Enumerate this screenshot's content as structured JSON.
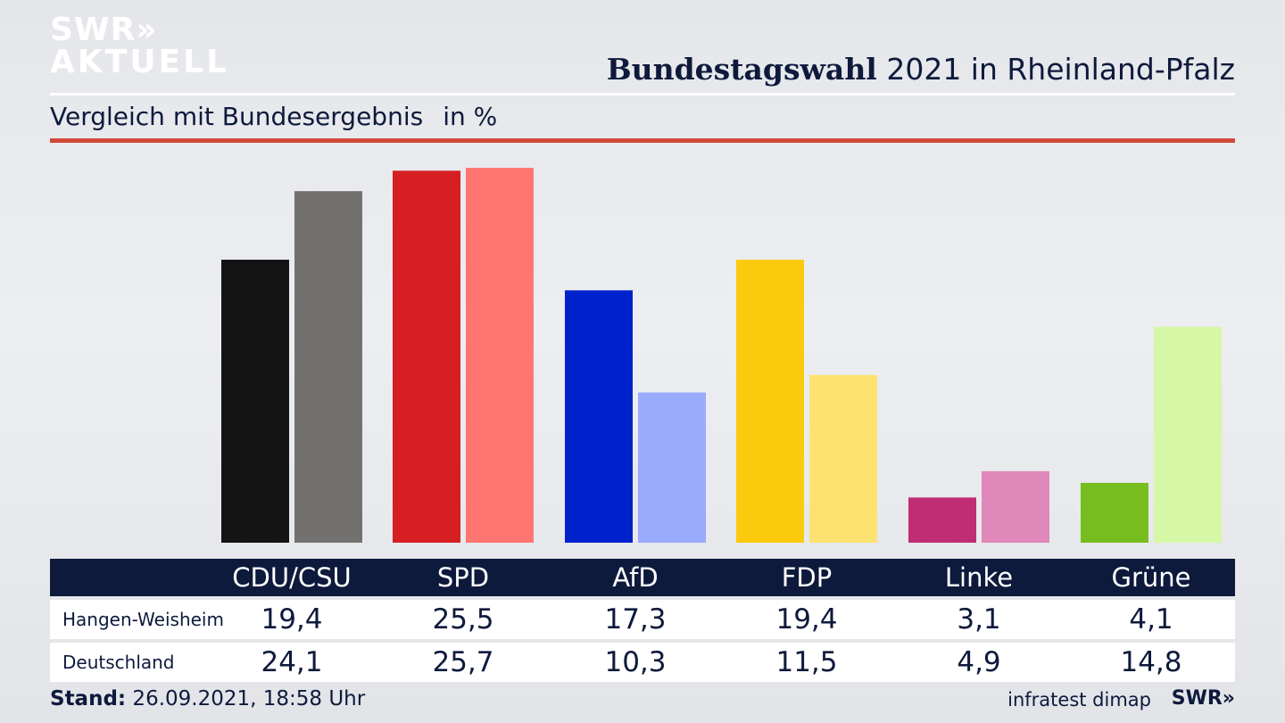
{
  "logo": {
    "line1": "SWR»",
    "line2": "AKTUELL"
  },
  "header": {
    "title_bold": "Bundestagswahl",
    "title_rest": " 2021 in Rheinland-Pfalz",
    "subtitle": "Vergleich mit Bundesergebnis",
    "unit": "in %"
  },
  "colors": {
    "navy": "#0e1a3c",
    "rule_red": "#d04a3a"
  },
  "chart_data": {
    "type": "bar",
    "categories": [
      "CDU/CSU",
      "SPD",
      "AfD",
      "FDP",
      "Linke",
      "Grüne"
    ],
    "series": [
      {
        "name": "Hangen-Weisheim",
        "values": [
          19.4,
          25.5,
          17.3,
          19.4,
          3.1,
          4.1
        ],
        "colors": [
          "#141414",
          "#d51f23",
          "#0022cc",
          "#fcca0d",
          "#c02d74",
          "#78bd20"
        ]
      },
      {
        "name": "Deutschland",
        "values": [
          24.1,
          25.7,
          10.3,
          11.5,
          4.9,
          14.8
        ],
        "colors": [
          "#737170",
          "#ff7670",
          "#9aaafd",
          "#fde272",
          "#df88b9",
          "#d5f7a6"
        ]
      }
    ],
    "ylim": [
      0,
      25.7
    ],
    "grid": false
  },
  "table": {
    "headers": [
      "CDU/CSU",
      "SPD",
      "AfD",
      "FDP",
      "Linke",
      "Grüne"
    ],
    "rows": [
      {
        "label": "Hangen-Weisheim",
        "values": [
          "19,4",
          "25,5",
          "17,3",
          "19,4",
          "3,1",
          "4,1"
        ]
      },
      {
        "label": "Deutschland",
        "values": [
          "24,1",
          "25,7",
          "10,3",
          "11,5",
          "4,9",
          "14,8"
        ]
      }
    ]
  },
  "footer": {
    "stand_label": "Stand:",
    "stand_value": " 26.09.2021, 18:58 Uhr",
    "source": "infratest dimap",
    "brand": "SWR»"
  }
}
